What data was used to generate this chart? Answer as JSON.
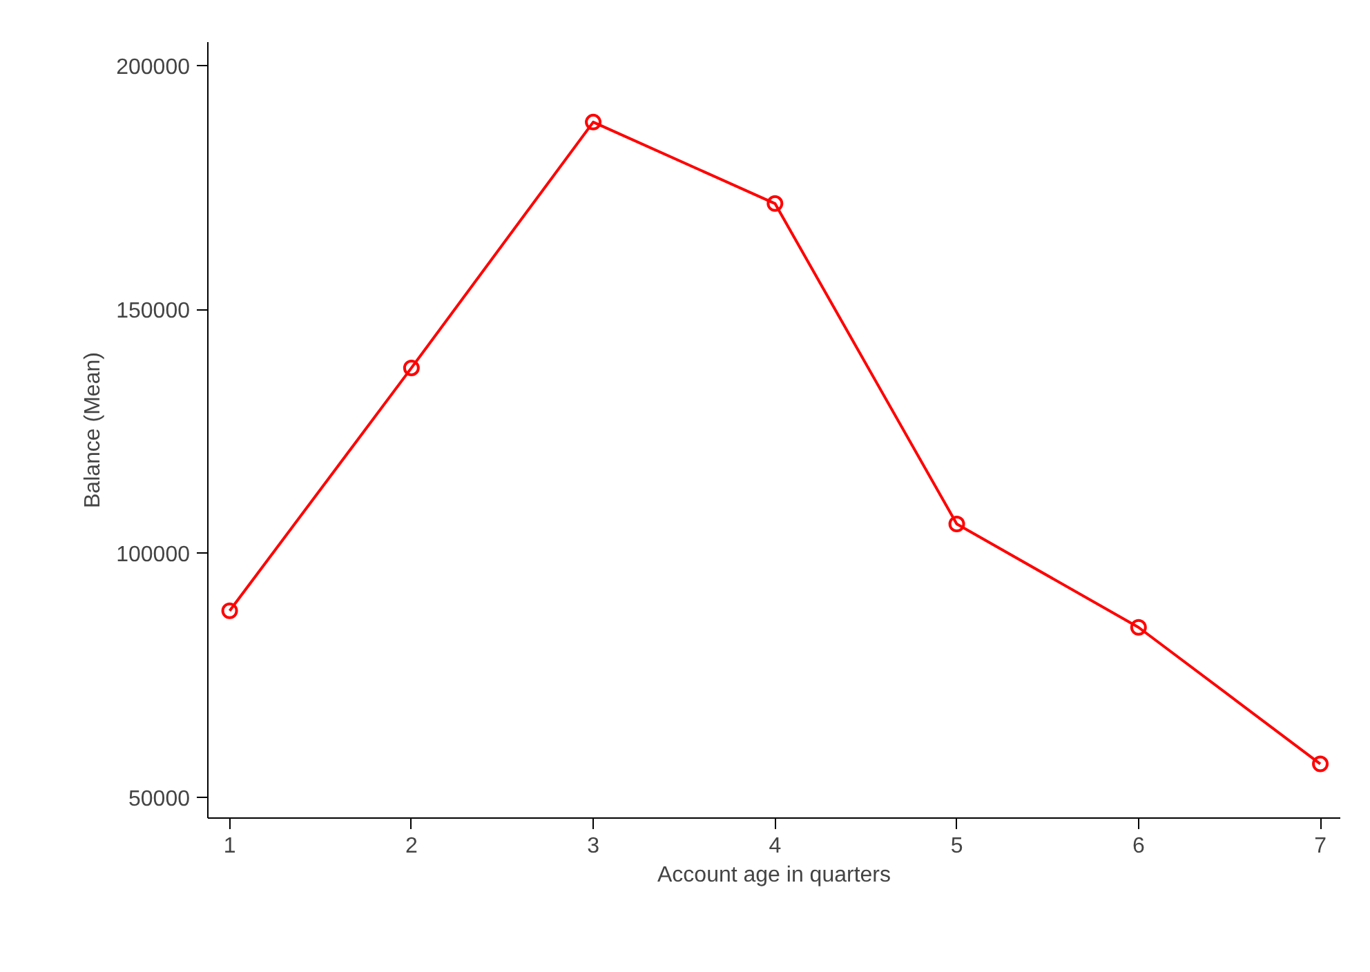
{
  "chart_data": {
    "type": "line",
    "xlabel": "Account age in quarters",
    "ylabel": "Balance (Mean)",
    "x": [
      1,
      2,
      3,
      4,
      5,
      6,
      7
    ],
    "series": [
      {
        "color": "#ff0000",
        "values": [
          88200,
          138000,
          188400,
          171700,
          106000,
          84800,
          56800
        ]
      }
    ],
    "xlim": [
      0.88,
      7.11
    ],
    "xticks": [
      1,
      2,
      3,
      4,
      5,
      6,
      7
    ],
    "ylim": [
      45700,
      204800
    ],
    "yticks": [
      50000,
      100000,
      150000,
      200000
    ],
    "grid": false,
    "marker": "circle",
    "line_style": "solid"
  }
}
